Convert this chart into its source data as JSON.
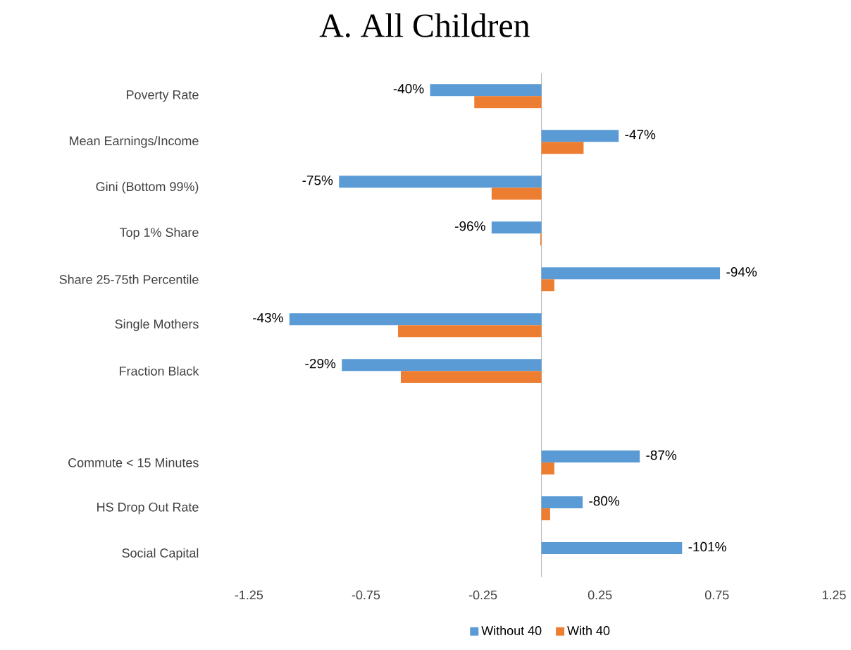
{
  "chart_data": {
    "type": "bar",
    "orientation": "horizontal",
    "title": "A. All Children",
    "categories": [
      "Poverty Rate",
      "Mean Earnings/Income",
      "Gini (Bottom 99%)",
      "Top 1% Share",
      "Share 25-75th Percentile",
      "Single Mothers",
      "Fraction Black",
      null,
      "Commute < 15 Minutes",
      "HS Drop Out Rate",
      "Social Capital"
    ],
    "series": [
      {
        "name": "Without 40",
        "color": "#5b9bd5",
        "values": [
          -0.476,
          0.33,
          -0.865,
          -0.213,
          0.763,
          -1.077,
          -0.853,
          null,
          0.42,
          0.176,
          0.601
        ]
      },
      {
        "name": "With 40",
        "color": "#ed7d31",
        "values": [
          -0.287,
          0.18,
          -0.213,
          -0.005,
          0.055,
          -0.613,
          -0.601,
          null,
          0.055,
          0.037,
          0
        ]
      }
    ],
    "annotations": [
      {
        "text": "-40%",
        "x": -0.476,
        "y": "Poverty Rate"
      },
      {
        "text": "-47%",
        "x": 0.33,
        "y": "Mean Earnings/Income"
      },
      {
        "text": "-75%",
        "x": -0.865,
        "y": "Gini (Bottom 99%)"
      },
      {
        "text": "-96%",
        "x": -0.213,
        "y": "Top 1% Share"
      },
      {
        "text": "-94%",
        "x": 0.763,
        "y": "Share 25-75th Percentile"
      },
      {
        "text": "-43%",
        "x": -1.077,
        "y": "Single Mothers"
      },
      {
        "text": "-29%",
        "x": -0.853,
        "y": "Fraction Black"
      },
      {
        "text": "-87%",
        "x": 0.42,
        "y": "Commute < 15 Minutes"
      },
      {
        "text": "-80%",
        "x": 0.176,
        "y": "HS Drop Out Rate"
      },
      {
        "text": "-101%",
        "x": 0.601,
        "y": "Social Capital"
      }
    ],
    "xlim": [
      -1.25,
      1.25
    ],
    "xticks": [
      -1.25,
      -0.75,
      -0.25,
      0.25,
      0.75,
      1.25
    ],
    "grid": false,
    "legend": "bottom"
  }
}
